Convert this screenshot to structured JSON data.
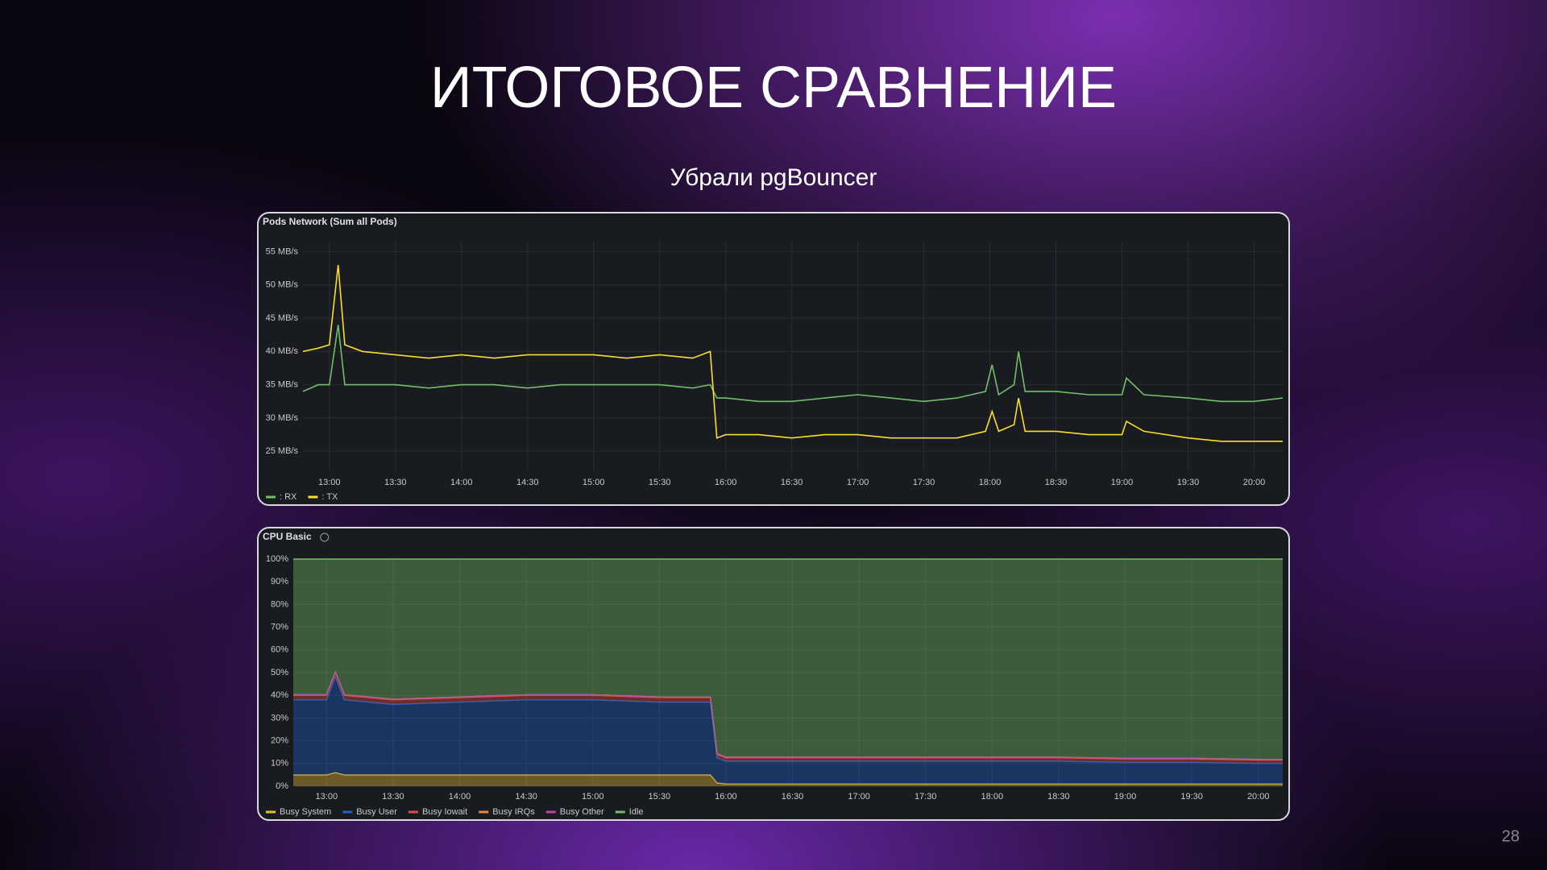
{
  "title": "ИТОГОВОЕ СРАВНЕНИЕ",
  "subtitle": "Убрали pgBouncer",
  "page_number": "28",
  "chart_data": [
    {
      "type": "line",
      "title": "Pods Network (Sum all Pods)",
      "grid": true,
      "legend": "bottom-left",
      "x": [
        "12:48",
        "12:55",
        "13:00",
        "13:04",
        "13:07",
        "13:15",
        "13:30",
        "13:45",
        "14:00",
        "14:15",
        "14:30",
        "14:45",
        "15:00",
        "15:15",
        "15:30",
        "15:45",
        "15:53",
        "15:56",
        "16:00",
        "16:15",
        "16:30",
        "16:45",
        "17:00",
        "17:15",
        "17:30",
        "17:45",
        "17:58",
        "18:01",
        "18:04",
        "18:11",
        "18:13",
        "18:16",
        "18:30",
        "18:45",
        "19:00",
        "19:02",
        "19:10",
        "19:30",
        "19:45",
        "20:00",
        "20:13"
      ],
      "xlim": [
        "12:48",
        "20:13"
      ],
      "xticks": [
        "13:00",
        "13:30",
        "14:00",
        "14:30",
        "15:00",
        "15:30",
        "16:00",
        "16:30",
        "17:00",
        "17:30",
        "18:00",
        "18:30",
        "19:00",
        "19:30",
        "20:00"
      ],
      "ylim": [
        22,
        56.5
      ],
      "yticks": [
        {
          "value": 25,
          "label": "25 MB/s"
        },
        {
          "value": 30,
          "label": "30 MB/s"
        },
        {
          "value": 35,
          "label": "35 MB/s"
        },
        {
          "value": 40,
          "label": "40 MB/s"
        },
        {
          "value": 45,
          "label": "45 MB/s"
        },
        {
          "value": 50,
          "label": "50 MB/s"
        },
        {
          "value": 55,
          "label": "55 MB/s"
        }
      ],
      "series": [
        {
          "name": ": RX",
          "color": "#73bf69",
          "values": [
            34,
            35,
            35,
            44,
            35,
            35,
            35,
            34.5,
            35,
            35,
            34.5,
            35,
            35,
            35,
            35,
            34.5,
            35,
            33,
            33,
            32.5,
            32.5,
            33,
            33.5,
            33,
            32.5,
            33,
            34,
            38,
            33.5,
            35,
            40,
            34,
            34,
            33.5,
            33.5,
            36,
            33.5,
            33,
            32.5,
            32.5,
            33
          ]
        },
        {
          "name": ": TX",
          "color": "#fade2a",
          "values": [
            40,
            40.5,
            41,
            53,
            41,
            40,
            39.5,
            39,
            39.5,
            39,
            39.5,
            39.5,
            39.5,
            39,
            39.5,
            39,
            40,
            27,
            27.5,
            27.5,
            27,
            27.5,
            27.5,
            27,
            27,
            27,
            28,
            31,
            28,
            29,
            33,
            28,
            28,
            27.5,
            27.5,
            29.5,
            28,
            27,
            26.5,
            26.5,
            26.5
          ]
        }
      ]
    },
    {
      "type": "stacked-area",
      "title": "CPU Basic",
      "grid": true,
      "legend": "bottom-left",
      "x": [
        "12:45",
        "13:00",
        "13:04",
        "13:08",
        "13:30",
        "14:00",
        "14:30",
        "15:00",
        "15:30",
        "15:53",
        "15:56",
        "16:00",
        "16:30",
        "17:00",
        "17:30",
        "18:00",
        "18:30",
        "19:00",
        "19:30",
        "20:00",
        "20:11"
      ],
      "xlim": [
        "12:45",
        "20:11"
      ],
      "xticks": [
        "13:00",
        "13:30",
        "14:00",
        "14:30",
        "15:00",
        "15:30",
        "16:00",
        "16:30",
        "17:00",
        "17:30",
        "18:00",
        "18:30",
        "19:00",
        "19:30",
        "20:00"
      ],
      "ylim": [
        0,
        100
      ],
      "yticks": [
        {
          "value": 0,
          "label": "0%"
        },
        {
          "value": 10,
          "label": "10%"
        },
        {
          "value": 20,
          "label": "20%"
        },
        {
          "value": 30,
          "label": "30%"
        },
        {
          "value": 40,
          "label": "40%"
        },
        {
          "value": 50,
          "label": "50%"
        },
        {
          "value": 60,
          "label": "60%"
        },
        {
          "value": 70,
          "label": "70%"
        },
        {
          "value": 80,
          "label": "80%"
        },
        {
          "value": 90,
          "label": "90%"
        },
        {
          "value": 100,
          "label": "100%"
        }
      ],
      "series": [
        {
          "name": "Busy System",
          "color": "#eab839",
          "values": [
            5,
            5,
            6,
            5,
            5,
            5,
            5,
            5,
            5,
            5,
            1.5,
            1,
            1,
            1,
            1,
            1,
            1,
            1,
            1,
            1,
            1
          ]
        },
        {
          "name": "Busy User",
          "color": "#1f60c4",
          "values": [
            33,
            33,
            42,
            33,
            31,
            32,
            33,
            33,
            32,
            32,
            11,
            10,
            10,
            10,
            10,
            10,
            10,
            9.5,
            9.5,
            9,
            9
          ]
        },
        {
          "name": "Busy Iowait",
          "color": "#e24d42",
          "values": [
            2,
            2,
            2,
            2,
            2,
            2,
            2,
            2,
            2,
            2,
            1.5,
            1.5,
            1.5,
            1.5,
            1.5,
            1.5,
            1.5,
            1.5,
            1.5,
            1.5,
            1.5
          ]
        },
        {
          "name": "Busy IRQs",
          "color": "#ef843c",
          "values": [
            0.3,
            0.3,
            0.3,
            0.3,
            0.3,
            0.3,
            0.3,
            0.3,
            0.3,
            0.3,
            0.3,
            0.3,
            0.3,
            0.3,
            0.3,
            0.3,
            0.3,
            0.3,
            0.3,
            0.3,
            0.3
          ]
        },
        {
          "name": "Busy Other",
          "color": "#ba43a9",
          "values": [
            0,
            0,
            0,
            0,
            0,
            0,
            0,
            0,
            0,
            0,
            0,
            0,
            0,
            0,
            0,
            0,
            0,
            0,
            0,
            0,
            0
          ]
        },
        {
          "name": "Idle",
          "color": "#73bf69",
          "values": [
            59.7,
            59.7,
            49.7,
            59.7,
            61.7,
            60.7,
            59.7,
            59.7,
            60.7,
            60.7,
            85.7,
            87.2,
            87.2,
            87.2,
            87.2,
            87.2,
            87.2,
            87.7,
            87.7,
            88.2,
            88.2
          ]
        }
      ]
    }
  ]
}
